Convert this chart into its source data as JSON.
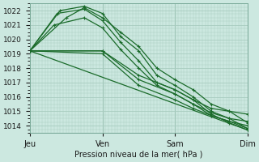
{
  "title": "",
  "xlabel": "Pression niveau de la mer( hPa )",
  "ylabel": "",
  "bg_color": "#cce8e0",
  "grid_color": "#a8ccbf",
  "line_color": "#1a6b2a",
  "ylim": [
    1013.5,
    1022.5
  ],
  "yticks": [
    1014,
    1015,
    1016,
    1017,
    1018,
    1019,
    1020,
    1021,
    1022
  ],
  "xlim": [
    0,
    72
  ],
  "day_ticks": [
    0,
    24,
    48,
    72
  ],
  "day_labels": [
    "Jeu",
    "Ven",
    "Sam",
    "Dim"
  ],
  "series": [
    {
      "x": [
        0,
        12,
        18,
        24,
        30,
        36,
        42,
        48,
        54,
        60,
        66,
        72
      ],
      "y": [
        1019.2,
        1021.5,
        1022.2,
        1021.5,
        1020.5,
        1019.5,
        1018.0,
        1017.2,
        1016.5,
        1015.5,
        1015.0,
        1014.2
      ]
    },
    {
      "x": [
        0,
        10,
        18,
        24,
        30,
        36,
        42,
        48,
        54,
        60,
        66,
        72
      ],
      "y": [
        1019.2,
        1022.0,
        1022.3,
        1021.8,
        1020.2,
        1019.2,
        1017.5,
        1016.8,
        1016.0,
        1015.0,
        1014.5,
        1013.8
      ]
    },
    {
      "x": [
        0,
        9,
        18,
        24,
        30,
        36,
        42,
        48,
        54,
        60,
        66,
        72
      ],
      "y": [
        1019.2,
        1021.8,
        1022.1,
        1021.3,
        1019.8,
        1018.5,
        1017.0,
        1016.5,
        1015.8,
        1014.8,
        1014.2,
        1013.7
      ]
    },
    {
      "x": [
        0,
        8,
        18,
        24,
        30,
        36,
        42,
        48,
        54,
        60,
        66,
        72
      ],
      "y": [
        1019.2,
        1021.0,
        1021.5,
        1020.8,
        1019.3,
        1018.0,
        1016.8,
        1016.2,
        1015.5,
        1014.7,
        1014.3,
        1013.8
      ]
    },
    {
      "x": [
        0,
        24,
        36,
        48,
        54,
        60,
        66,
        72
      ],
      "y": [
        1019.2,
        1019.2,
        1017.5,
        1016.5,
        1015.8,
        1015.2,
        1015.0,
        1014.8
      ]
    },
    {
      "x": [
        0,
        24,
        36,
        48,
        54,
        60,
        66,
        72
      ],
      "y": [
        1019.2,
        1019.2,
        1017.2,
        1016.2,
        1015.5,
        1014.9,
        1014.5,
        1014.3
      ]
    },
    {
      "x": [
        0,
        24,
        36,
        48,
        54,
        60,
        66,
        72
      ],
      "y": [
        1019.2,
        1019.0,
        1016.8,
        1015.8,
        1015.2,
        1014.7,
        1014.3,
        1014.0
      ]
    },
    {
      "x": [
        0,
        72
      ],
      "y": [
        1019.2,
        1013.7
      ]
    }
  ]
}
